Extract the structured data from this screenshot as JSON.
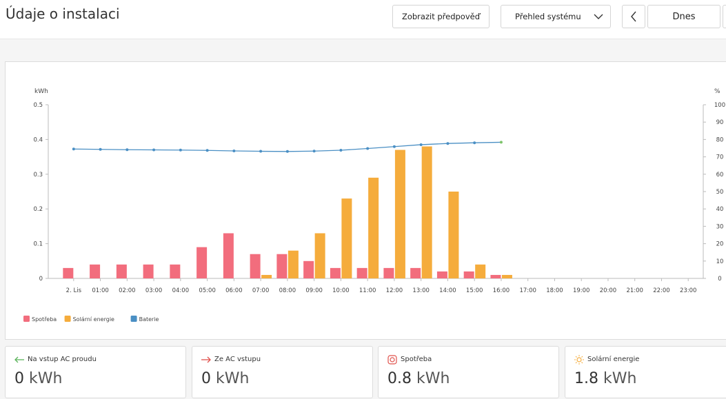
{
  "header": {
    "title": "Údaje o instalaci",
    "forecast_button": "Zobrazit předpověď",
    "view_select": "Přehled systému",
    "today_button": "Dnes",
    "icons": {
      "prev": "chevron-left-icon",
      "select": "chevron-down-icon"
    }
  },
  "chart_data": {
    "type": "bar",
    "y_left_label": "kWh",
    "y_right_label": "%",
    "ylim_left": [
      0,
      0.5
    ],
    "ylim_right": [
      0,
      100
    ],
    "y_left_ticks": [
      "0",
      "0.1",
      "0.2",
      "0.3",
      "0.4",
      "0.5"
    ],
    "y_right_ticks": [
      "0",
      "10",
      "20",
      "30",
      "40",
      "50",
      "60",
      "70",
      "80",
      "90",
      "100"
    ],
    "categories": [
      "2. Lis",
      "01:00",
      "02:00",
      "03:00",
      "04:00",
      "05:00",
      "06:00",
      "07:00",
      "08:00",
      "09:00",
      "10:00",
      "11:00",
      "12:00",
      "13:00",
      "14:00",
      "15:00",
      "16:00",
      "17:00",
      "18:00",
      "19:00",
      "20:00",
      "21:00",
      "22:00",
      "23:00"
    ],
    "series": [
      {
        "name": "Spotřeba",
        "type": "bar",
        "color": "#f26d7d",
        "values": [
          0.03,
          0.04,
          0.04,
          0.04,
          0.04,
          0.09,
          0.13,
          0.07,
          0.07,
          0.05,
          0.03,
          0.03,
          0.03,
          0.03,
          0.02,
          0.02,
          0.01,
          null,
          null,
          null,
          null,
          null,
          null,
          null
        ]
      },
      {
        "name": "Solární energie",
        "type": "bar",
        "color": "#f5ac3c",
        "values": [
          null,
          null,
          null,
          null,
          null,
          null,
          null,
          0.01,
          0.08,
          0.13,
          0.23,
          0.29,
          0.37,
          0.38,
          0.25,
          0.04,
          0.01,
          null,
          null,
          null,
          null,
          null,
          null,
          null
        ]
      },
      {
        "name": "Baterie",
        "type": "line",
        "axis": "right",
        "color": "#4a8fc4",
        "values": [
          74.5,
          74.3,
          74.1,
          74.0,
          73.9,
          73.7,
          73.4,
          73.2,
          73.1,
          73.3,
          73.8,
          74.8,
          75.9,
          77.0,
          77.7,
          78.1,
          78.4,
          null,
          null,
          null,
          null,
          null,
          null,
          null
        ]
      }
    ],
    "legend_position": "bottom-left"
  },
  "cards": [
    {
      "label": "Na vstup AC proudu",
      "value": "0",
      "unit": "kWh",
      "icon": "arrow-left-icon",
      "color": "#5bb35b"
    },
    {
      "label": "Ze AC vstupu",
      "value": "0",
      "unit": "kWh",
      "icon": "arrow-right-icon",
      "color": "#e0504b"
    },
    {
      "label": "Spotřeba",
      "value": "0.8",
      "unit": "kWh",
      "icon": "plug-icon",
      "color": "#e0504b"
    },
    {
      "label": "Solární energie",
      "value": "1.8",
      "unit": "kWh",
      "icon": "sun-icon",
      "color": "#f5ac3c"
    }
  ]
}
